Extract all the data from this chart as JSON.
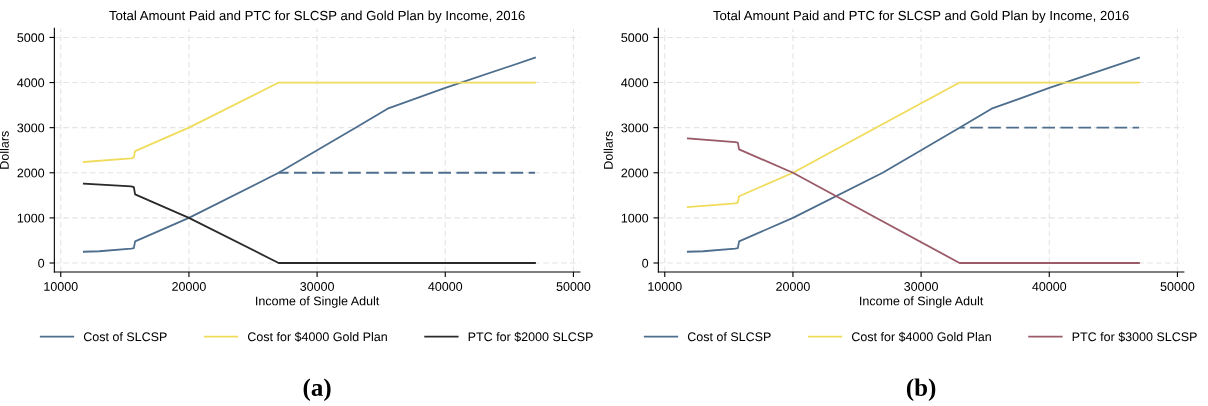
{
  "chart_data": [
    {
      "type": "line",
      "title": "Total Amount Paid and PTC for SLCSP and Gold Plan by Income, 2016",
      "xlabel": "Income of Single Adult",
      "ylabel": "Dollars",
      "xlim": [
        9500,
        50500
      ],
      "xticks": [
        10000,
        20000,
        30000,
        40000,
        50000
      ],
      "ylim": [
        -200,
        5200
      ],
      "yticks": [
        0,
        1000,
        2000,
        3000,
        4000,
        5000
      ],
      "grid": true,
      "legend": "bottom",
      "annotations": [
        "(a)"
      ],
      "series": [
        {
          "name": "Cost of SLCSP",
          "color": "#4e6e8e",
          "x": [
            11800,
            13000,
            15500,
            15700,
            15800,
            20000,
            27000,
            30000,
            33000,
            35500,
            40000,
            47000
          ],
          "values": [
            250,
            260,
            320,
            330,
            480,
            1000,
            2000,
            2500,
            3000,
            3420,
            3880,
            4550
          ]
        },
        {
          "name": "Cost for $4000 Gold Plan",
          "color": "#f0dc5a",
          "x": [
            11800,
            15500,
            15700,
            15800,
            20000,
            27000,
            47000
          ],
          "values": [
            2240,
            2320,
            2340,
            2480,
            3000,
            4000,
            4000
          ]
        },
        {
          "name": "PTC for $2000 SLCSP",
          "color": "#2a2a2a",
          "x": [
            11800,
            15500,
            15700,
            15800,
            20000,
            27000,
            47000
          ],
          "values": [
            1760,
            1700,
            1680,
            1520,
            1000,
            0,
            0
          ]
        },
        {
          "color": "#4e6e8e",
          "line_style": "dashed",
          "x": [
            27000,
            47000
          ],
          "values": [
            2000,
            2000
          ]
        }
      ]
    },
    {
      "type": "line",
      "title": "Total Amount Paid and PTC for SLCSP and Gold Plan by Income, 2016",
      "xlabel": "Income of Single Adult",
      "ylabel": "Dollars",
      "xlim": [
        9500,
        50500
      ],
      "xticks": [
        10000,
        20000,
        30000,
        40000,
        50000
      ],
      "ylim": [
        -200,
        5200
      ],
      "yticks": [
        0,
        1000,
        2000,
        3000,
        4000,
        5000
      ],
      "grid": true,
      "legend": "bottom",
      "annotations": [
        "(b)"
      ],
      "series": [
        {
          "name": "Cost of SLCSP",
          "color": "#4e6e8e",
          "x": [
            11800,
            13000,
            15500,
            15700,
            15800,
            20000,
            27000,
            30000,
            33000,
            35500,
            40000,
            47000
          ],
          "values": [
            250,
            260,
            320,
            330,
            480,
            1000,
            2000,
            2500,
            3000,
            3420,
            3880,
            4550
          ]
        },
        {
          "name": "Cost for $4000 Gold Plan",
          "color": "#f0dc5a",
          "x": [
            11800,
            15500,
            15700,
            15800,
            20000,
            33000,
            47000
          ],
          "values": [
            1240,
            1320,
            1340,
            1480,
            2000,
            4000,
            4000
          ]
        },
        {
          "name": "PTC for $3000 SLCSP",
          "color": "#9a5a68",
          "x": [
            11800,
            15500,
            15700,
            15800,
            20000,
            33000,
            47000
          ],
          "values": [
            2760,
            2680,
            2670,
            2520,
            2000,
            0,
            0
          ]
        },
        {
          "color": "#4e6e8e",
          "line_style": "dashed",
          "x": [
            33000,
            47000
          ],
          "values": [
            3000,
            3000
          ]
        }
      ]
    }
  ]
}
